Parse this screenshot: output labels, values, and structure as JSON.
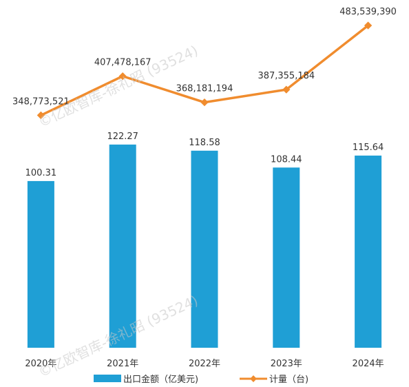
{
  "chart_data": {
    "type": "bar",
    "categories": [
      "2020年",
      "2021年",
      "2022年",
      "2023年",
      "2024年"
    ],
    "series": [
      {
        "name": "出口金额（亿美元)",
        "kind": "bar",
        "axis": "left",
        "values": [
          100.31,
          122.27,
          118.58,
          108.44,
          115.64
        ],
        "labels": [
          "100.31",
          "122.27",
          "118.58",
          "108.44",
          "115.64"
        ],
        "color": "#1f9fd5"
      },
      {
        "name": "计量（台)",
        "kind": "line",
        "axis": "right",
        "values": [
          348773521,
          407478167,
          368181194,
          387355184,
          483539390
        ],
        "labels": [
          "348,773,521",
          "407,478,167",
          "368,181,194",
          "387,355,184",
          "483,539,390"
        ],
        "color": "#f08c2e"
      }
    ],
    "ylim": [
      0,
      150
    ],
    "y2lim": [
      0,
      560000000
    ],
    "grid": false,
    "legend": "bottom"
  },
  "watermarks": [
    "©亿欧智库-徐礼昭 (93524)",
    "©亿欧智库-徐礼昭 (93524)"
  ]
}
